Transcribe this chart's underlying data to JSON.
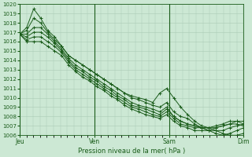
{
  "bg_color": "#cce8d4",
  "grid_color": "#aacbb5",
  "line_color": "#1a5c1a",
  "ylabel_min": 1006,
  "ylabel_max": 1020,
  "x_ticks_labels": [
    "Jeu",
    "Ven",
    "Sam",
    "Dim"
  ],
  "x_ticks_pos": [
    0,
    33,
    66,
    99
  ],
  "xlabel": "Pression niveau de la mer( hPa )",
  "series": [
    [
      1016.8,
      1017.5,
      1019.5,
      1018.5,
      1017.2,
      1016.5,
      1015.5,
      1014.5,
      1014.0,
      1013.5,
      1013.0,
      1012.5,
      1012.0,
      1011.5,
      1011.0,
      1010.5,
      1010.2,
      1010.0,
      1009.8,
      1009.5,
      1010.5,
      1011.0,
      1010.0,
      1009.0,
      1008.2,
      1007.5,
      1007.0,
      1006.8,
      1006.5,
      1006.2,
      1006.0,
      1006.0,
      1006.2
    ],
    [
      1016.8,
      1017.2,
      1018.5,
      1018.0,
      1017.0,
      1016.2,
      1015.5,
      1014.5,
      1014.0,
      1013.5,
      1013.0,
      1012.5,
      1012.0,
      1011.5,
      1011.0,
      1010.5,
      1010.0,
      1009.8,
      1009.5,
      1009.2,
      1009.0,
      1009.5,
      1008.5,
      1008.0,
      1007.8,
      1007.2,
      1006.8,
      1006.5,
      1006.2,
      1006.0,
      1006.2,
      1006.5,
      1006.8
    ],
    [
      1016.8,
      1016.8,
      1017.5,
      1017.5,
      1016.8,
      1016.0,
      1015.2,
      1014.2,
      1013.5,
      1013.0,
      1012.5,
      1012.0,
      1011.5,
      1011.0,
      1010.5,
      1010.0,
      1009.5,
      1009.2,
      1009.0,
      1008.8,
      1008.5,
      1009.0,
      1008.0,
      1007.5,
      1007.2,
      1007.0,
      1006.8,
      1006.5,
      1006.5,
      1006.5,
      1006.8,
      1007.0,
      1007.2
    ],
    [
      1016.8,
      1016.5,
      1017.0,
      1017.0,
      1016.5,
      1015.8,
      1015.0,
      1014.0,
      1013.2,
      1012.8,
      1012.2,
      1011.8,
      1011.2,
      1010.8,
      1010.2,
      1009.8,
      1009.2,
      1009.0,
      1008.8,
      1008.5,
      1008.2,
      1008.8,
      1008.0,
      1007.5,
      1007.2,
      1007.0,
      1006.8,
      1006.8,
      1006.8,
      1007.0,
      1007.2,
      1007.5,
      1007.5
    ],
    [
      1016.8,
      1016.2,
      1016.5,
      1016.5,
      1016.0,
      1015.5,
      1014.8,
      1013.8,
      1013.0,
      1012.5,
      1012.0,
      1011.5,
      1011.0,
      1010.5,
      1010.0,
      1009.5,
      1009.0,
      1008.8,
      1008.5,
      1008.2,
      1008.0,
      1008.5,
      1007.8,
      1007.2,
      1007.0,
      1006.8,
      1006.8,
      1006.8,
      1007.0,
      1007.2,
      1007.5,
      1007.5,
      1007.2
    ],
    [
      1016.8,
      1016.0,
      1016.0,
      1016.0,
      1015.5,
      1015.0,
      1014.5,
      1013.5,
      1012.8,
      1012.2,
      1011.8,
      1011.2,
      1010.8,
      1010.2,
      1009.8,
      1009.2,
      1008.8,
      1008.5,
      1008.2,
      1008.0,
      1007.8,
      1008.2,
      1007.5,
      1007.0,
      1006.8,
      1006.5,
      1006.5,
      1006.5,
      1006.8,
      1007.0,
      1007.2,
      1007.2,
      1007.0
    ]
  ]
}
